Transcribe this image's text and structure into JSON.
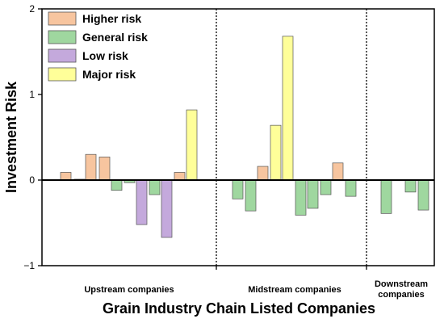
{
  "chart_data": {
    "type": "bar",
    "xlabel": "Grain Industry Chain Listed Companies",
    "ylabel": "Investment Risk",
    "ylim": [
      -1,
      2
    ],
    "yticks": [
      -1,
      0,
      1,
      2
    ],
    "grid": false,
    "legend_position": "top-left",
    "groups": [
      {
        "label": "Upstream companies"
      },
      {
        "label": "Midstream companies"
      },
      {
        "label": "Downstream companies",
        "lines": [
          "Downstream",
          "companies"
        ]
      }
    ],
    "series": [
      {
        "name": "Higher risk",
        "color": "#f7c59f"
      },
      {
        "name": "General risk",
        "color": "#9fd79f"
      },
      {
        "name": "Low risk",
        "color": "#c4a9dc"
      },
      {
        "name": "Major risk",
        "color": "#ffff99"
      }
    ],
    "bars": [
      {
        "group": 0,
        "series": 0,
        "value": 0.09
      },
      {
        "group": 0,
        "series": 1,
        "value": 0.01
      },
      {
        "group": 0,
        "series": 0,
        "value": 0.3
      },
      {
        "group": 0,
        "series": 0,
        "value": 0.27
      },
      {
        "group": 0,
        "series": 1,
        "value": -0.12
      },
      {
        "group": 0,
        "series": 1,
        "value": -0.03
      },
      {
        "group": 0,
        "series": 2,
        "value": -0.52
      },
      {
        "group": 0,
        "series": 1,
        "value": -0.17
      },
      {
        "group": 0,
        "series": 2,
        "value": -0.67
      },
      {
        "group": 0,
        "series": 0,
        "value": 0.09
      },
      {
        "group": 0,
        "series": 3,
        "value": 0.82
      },
      {
        "group": 1,
        "series": 1,
        "value": -0.22
      },
      {
        "group": 1,
        "series": 1,
        "value": -0.36
      },
      {
        "group": 1,
        "series": 0,
        "value": 0.16
      },
      {
        "group": 1,
        "series": 3,
        "value": 0.64
      },
      {
        "group": 1,
        "series": 3,
        "value": 1.68
      },
      {
        "group": 1,
        "series": 1,
        "value": -0.41
      },
      {
        "group": 1,
        "series": 1,
        "value": -0.33
      },
      {
        "group": 1,
        "series": 1,
        "value": -0.17
      },
      {
        "group": 1,
        "series": 0,
        "value": 0.2
      },
      {
        "group": 1,
        "series": 1,
        "value": -0.19
      },
      {
        "group": 2,
        "series": 1,
        "value": -0.39
      },
      {
        "group": 2,
        "series": 1,
        "value": -0.14
      },
      {
        "group": 2,
        "series": 1,
        "value": -0.35
      }
    ]
  }
}
